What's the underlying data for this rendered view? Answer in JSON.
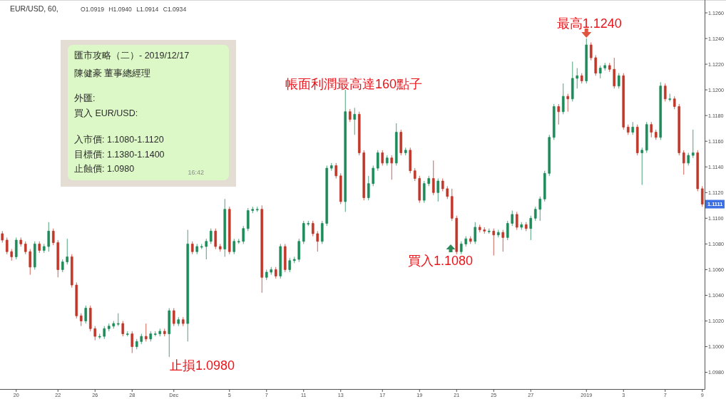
{
  "chart_data": {
    "type": "candlestick",
    "title": "EUR/USD, 60,",
    "subtitle": "O1.0919 H1.0940 L1.0914 C1.0934",
    "categories": [
      null,
      null,
      null,
      "20",
      null,
      null,
      null,
      null,
      null,
      null,
      null,
      null,
      "22",
      null,
      null,
      null,
      null,
      null,
      null,
      null,
      "26",
      null,
      null,
      null,
      null,
      null,
      null,
      null,
      "28",
      null,
      null,
      null,
      null,
      null,
      null,
      null,
      null,
      "Dec",
      null,
      null,
      null,
      null,
      null,
      null,
      null,
      null,
      null,
      null,
      null,
      "5",
      null,
      null,
      null,
      null,
      null,
      null,
      null,
      "7",
      null,
      null,
      null,
      null,
      null,
      null,
      null,
      "11",
      null,
      null,
      null,
      null,
      null,
      null,
      null,
      "13",
      null,
      null,
      null,
      null,
      null,
      null,
      null,
      null,
      "17",
      null,
      null,
      null,
      null,
      null,
      null,
      null,
      "19",
      null,
      null,
      null,
      null,
      null,
      null,
      null,
      "21",
      null,
      null,
      null,
      null,
      null,
      null,
      null,
      "25",
      null,
      null,
      null,
      null,
      null,
      null,
      null,
      "27",
      null,
      null,
      null,
      null,
      null,
      null,
      null,
      null,
      null,
      null,
      null,
      "2019",
      null,
      null,
      null,
      null,
      null,
      null,
      null,
      "3",
      null,
      null,
      null,
      null,
      null,
      null,
      null,
      null,
      "7",
      null,
      null,
      null,
      null,
      null,
      null,
      null,
      "9"
    ],
    "ohlc": [
      [
        1.1088,
        1.109,
        1.1081,
        1.1083
      ],
      [
        1.1083,
        1.1085,
        1.1072,
        1.1074
      ],
      [
        1.1074,
        1.1076,
        1.1067,
        1.107
      ],
      [
        1.107,
        1.1085,
        1.1068,
        1.1083
      ],
      [
        1.1083,
        1.1085,
        1.1078,
        1.108
      ],
      [
        1.108,
        1.1082,
        1.1072,
        1.1074
      ],
      [
        1.1074,
        1.1076,
        1.1056,
        1.1062
      ],
      [
        1.1062,
        1.1082,
        1.106,
        1.108
      ],
      [
        1.108,
        1.1082,
        1.1073,
        1.1075
      ],
      [
        1.1075,
        1.108,
        1.1073,
        1.1078
      ],
      [
        1.1078,
        1.1097,
        1.1074,
        1.109
      ],
      [
        1.109,
        1.1092,
        1.1079,
        1.1081
      ],
      [
        1.1081,
        1.1083,
        1.1054,
        1.106
      ],
      [
        1.106,
        1.1068,
        1.1058,
        1.1066
      ],
      [
        1.1066,
        1.1084,
        1.1064,
        1.107
      ],
      [
        1.107,
        1.1072,
        1.1046,
        1.1048
      ],
      [
        1.1048,
        1.105,
        1.1022,
        1.1024
      ],
      [
        1.1024,
        1.1026,
        1.1016,
        1.102
      ],
      [
        1.102,
        1.1032,
        1.1018,
        1.103
      ],
      [
        1.103,
        1.1032,
        1.1012,
        1.1014
      ],
      [
        1.1014,
        1.1016,
        1.1005,
        1.1008
      ],
      [
        1.1008,
        1.101,
        1.1006,
        1.1008
      ],
      [
        1.1008,
        1.1016,
        1.1006,
        1.1014
      ],
      [
        1.1014,
        1.1018,
        1.1012,
        1.1016
      ],
      [
        1.1016,
        1.102,
        1.1014,
        1.1018
      ],
      [
        1.1018,
        1.1026,
        1.1016,
        1.1018
      ],
      [
        1.1018,
        1.102,
        1.1008,
        1.101
      ],
      [
        1.101,
        1.1012,
        1.1008,
        1.101
      ],
      [
        1.101,
        1.1012,
        1.0995,
        1.1
      ],
      [
        1.1,
        1.1006,
        1.0998,
        1.1004
      ],
      [
        1.1004,
        1.101,
        1.1002,
        1.1008
      ],
      [
        1.1008,
        1.1018,
        1.1004,
        1.1006
      ],
      [
        1.1006,
        1.1012,
        1.1004,
        1.101
      ],
      [
        1.101,
        1.1012,
        1.1008,
        1.101
      ],
      [
        1.101,
        1.1014,
        1.1008,
        1.1012
      ],
      [
        1.1012,
        1.1014,
        1.1008,
        1.101
      ],
      [
        1.101,
        1.103,
        1.0992,
        1.1028
      ],
      [
        1.1028,
        1.103,
        1.1016,
        1.1018
      ],
      [
        1.1018,
        1.1023,
        1.1016,
        1.1021
      ],
      [
        1.1021,
        1.1023,
        1.1016,
        1.1018
      ],
      [
        1.1018,
        1.1091,
        1.1004,
        1.108
      ],
      [
        1.108,
        1.1082,
        1.1072,
        1.1074
      ],
      [
        1.1074,
        1.108,
        1.1072,
        1.1078
      ],
      [
        1.1078,
        1.108,
        1.1076,
        1.1078
      ],
      [
        1.1078,
        1.1084,
        1.1068,
        1.1082
      ],
      [
        1.1082,
        1.1092,
        1.108,
        1.109
      ],
      [
        1.109,
        1.1092,
        1.1076,
        1.1078
      ],
      [
        1.1078,
        1.108,
        1.1074,
        1.1076
      ],
      [
        1.1076,
        1.1115,
        1.107,
        1.1107
      ],
      [
        1.1107,
        1.1109,
        1.1072,
        1.1074
      ],
      [
        1.1074,
        1.1084,
        1.1072,
        1.1082
      ],
      [
        1.1082,
        1.1084,
        1.108,
        1.1082
      ],
      [
        1.1082,
        1.1094,
        1.108,
        1.1092
      ],
      [
        1.1092,
        1.1108,
        1.109,
        1.1106
      ],
      [
        1.1106,
        1.1109,
        1.1104,
        1.1107
      ],
      [
        1.1107,
        1.1109,
        1.1105,
        1.1107
      ],
      [
        1.1107,
        1.111,
        1.1042,
        1.1054
      ],
      [
        1.1054,
        1.106,
        1.1052,
        1.1058
      ],
      [
        1.1058,
        1.1062,
        1.1056,
        1.106
      ],
      [
        1.106,
        1.1062,
        1.1053,
        1.1055
      ],
      [
        1.1055,
        1.108,
        1.1053,
        1.1078
      ],
      [
        1.1078,
        1.108,
        1.1058,
        1.106
      ],
      [
        1.106,
        1.1069,
        1.1058,
        1.1067
      ],
      [
        1.1067,
        1.107,
        1.1065,
        1.1068
      ],
      [
        1.1068,
        1.1084,
        1.1066,
        1.1082
      ],
      [
        1.1082,
        1.1098,
        1.108,
        1.1096
      ],
      [
        1.1096,
        1.1098,
        1.1094,
        1.1096
      ],
      [
        1.1096,
        1.1098,
        1.1086,
        1.1088
      ],
      [
        1.1088,
        1.109,
        1.1074,
        1.1082
      ],
      [
        1.1082,
        1.1098,
        1.108,
        1.1096
      ],
      [
        1.1096,
        1.1141,
        1.1094,
        1.1139
      ],
      [
        1.1139,
        1.1143,
        1.1137,
        1.1141
      ],
      [
        1.1141,
        1.1143,
        1.1131,
        1.1133
      ],
      [
        1.1133,
        1.1135,
        1.1111,
        1.1113
      ],
      [
        1.1113,
        1.12,
        1.1105,
        1.1183
      ],
      [
        1.1183,
        1.1185,
        1.1175,
        1.1177
      ],
      [
        1.1177,
        1.1186,
        1.1165,
        1.1181
      ],
      [
        1.1181,
        1.1183,
        1.1149,
        1.1151
      ],
      [
        1.1151,
        1.1153,
        1.1114,
        1.1116
      ],
      [
        1.1116,
        1.1133,
        1.1114,
        1.1127
      ],
      [
        1.1127,
        1.1141,
        1.1125,
        1.1139
      ],
      [
        1.1139,
        1.1153,
        1.1137,
        1.1151
      ],
      [
        1.1151,
        1.1153,
        1.1141,
        1.1143
      ],
      [
        1.1143,
        1.1149,
        1.1141,
        1.1147
      ],
      [
        1.1147,
        1.1149,
        1.113,
        1.1143
      ],
      [
        1.1143,
        1.1174,
        1.1141,
        1.1167
      ],
      [
        1.1167,
        1.1169,
        1.1149,
        1.1151
      ],
      [
        1.1151,
        1.1155,
        1.1149,
        1.1153
      ],
      [
        1.1153,
        1.1155,
        1.1135,
        1.1137
      ],
      [
        1.1137,
        1.1139,
        1.1129,
        1.1131
      ],
      [
        1.1131,
        1.1133,
        1.1112,
        1.1114
      ],
      [
        1.1114,
        1.1129,
        1.1112,
        1.1127
      ],
      [
        1.1127,
        1.1133,
        1.1125,
        1.1131
      ],
      [
        1.1131,
        1.1145,
        1.1118,
        1.112
      ],
      [
        1.112,
        1.1131,
        1.1113,
        1.1129
      ],
      [
        1.1129,
        1.1131,
        1.1121,
        1.1123
      ],
      [
        1.1123,
        1.1125,
        1.1115,
        1.1117
      ],
      [
        1.1117,
        1.1123,
        1.1098,
        1.11
      ],
      [
        1.11,
        1.1102,
        1.1072,
        1.1074
      ],
      [
        1.1074,
        1.1082,
        1.1072,
        1.108
      ],
      [
        1.108,
        1.1086,
        1.1078,
        1.1084
      ],
      [
        1.1084,
        1.1086,
        1.108,
        1.1082
      ],
      [
        1.1082,
        1.1097,
        1.108,
        1.1093
      ],
      [
        1.1093,
        1.1095,
        1.1089,
        1.1091
      ],
      [
        1.1091,
        1.1093,
        1.1088,
        1.109
      ],
      [
        1.109,
        1.1092,
        1.1088,
        1.109
      ],
      [
        1.109,
        1.1092,
        1.1071,
        1.1087
      ],
      [
        1.1087,
        1.1091,
        1.1085,
        1.1089
      ],
      [
        1.1089,
        1.1091,
        1.1074,
        1.1085
      ],
      [
        1.1085,
        1.1098,
        1.1083,
        1.1096
      ],
      [
        1.1096,
        1.1106,
        1.1094,
        1.1103
      ],
      [
        1.1103,
        1.1105,
        1.1091,
        1.1093
      ],
      [
        1.1093,
        1.1097,
        1.1091,
        1.1095
      ],
      [
        1.1095,
        1.1097,
        1.109,
        1.1092
      ],
      [
        1.1092,
        1.1102,
        1.1083,
        1.11
      ],
      [
        1.11,
        1.1109,
        1.1098,
        1.1107
      ],
      [
        1.1107,
        1.1117,
        1.1098,
        1.1115
      ],
      [
        1.1115,
        1.1137,
        1.1113,
        1.1135
      ],
      [
        1.1135,
        1.1165,
        1.1133,
        1.1163
      ],
      [
        1.1163,
        1.1189,
        1.1161,
        1.1187
      ],
      [
        1.1187,
        1.1189,
        1.1173,
        1.1183
      ],
      [
        1.1183,
        1.1205,
        1.1181,
        1.1195
      ],
      [
        1.1195,
        1.1197,
        1.1183,
        1.1193
      ],
      [
        1.1193,
        1.1222,
        1.1191,
        1.1209
      ],
      [
        1.1209,
        1.1217,
        1.1201,
        1.1211
      ],
      [
        1.1211,
        1.1213,
        1.1205,
        1.1207
      ],
      [
        1.1207,
        1.124,
        1.1205,
        1.1235
      ],
      [
        1.1235,
        1.1237,
        1.1223,
        1.1225
      ],
      [
        1.1225,
        1.1227,
        1.1211,
        1.1213
      ],
      [
        1.1213,
        1.1219,
        1.1209,
        1.1217
      ],
      [
        1.1217,
        1.1221,
        1.1215,
        1.1219
      ],
      [
        1.1219,
        1.1221,
        1.1214,
        1.1216
      ],
      [
        1.1216,
        1.1225,
        1.1201,
        1.1203
      ],
      [
        1.1203,
        1.1213,
        1.1201,
        1.1211
      ],
      [
        1.1211,
        1.1213,
        1.1169,
        1.1171
      ],
      [
        1.1171,
        1.1173,
        1.1165,
        1.1167
      ],
      [
        1.1167,
        1.1175,
        1.1165,
        1.1171
      ],
      [
        1.1171,
        1.1173,
        1.1149,
        1.1151
      ],
      [
        1.1151,
        1.1155,
        1.1126,
        1.1153
      ],
      [
        1.1153,
        1.1175,
        1.1151,
        1.1173
      ],
      [
        1.1173,
        1.1175,
        1.1163,
        1.1167
      ],
      [
        1.1167,
        1.1169,
        1.1161,
        1.1163
      ],
      [
        1.1163,
        1.1206,
        1.1161,
        1.1203
      ],
      [
        1.1203,
        1.1205,
        1.1191,
        1.1193
      ],
      [
        1.1193,
        1.1197,
        1.1191,
        1.1193
      ],
      [
        1.1193,
        1.1195,
        1.1185,
        1.1187
      ],
      [
        1.1187,
        1.1189,
        1.1149,
        1.1151
      ],
      [
        1.1151,
        1.1153,
        1.1134,
        1.1143
      ],
      [
        1.1143,
        1.1151,
        1.1141,
        1.1149
      ],
      [
        1.1149,
        1.1169,
        1.1147,
        1.1151
      ],
      [
        1.1151,
        1.1153,
        1.1121,
        1.1123
      ],
      [
        1.1123,
        1.1125,
        1.1109,
        1.1111
      ]
    ],
    "ylim": [
      1.0967,
      1.127
    ],
    "yticks": [
      {
        "value": 1.098,
        "label": "1.0980"
      },
      {
        "value": 1.1,
        "label": "1.1000"
      },
      {
        "value": 1.102,
        "label": "1.1020"
      },
      {
        "value": 1.104,
        "label": "1.1040"
      },
      {
        "value": 1.106,
        "label": "1.1060"
      },
      {
        "value": 1.108,
        "label": "1.1080"
      },
      {
        "value": 1.11,
        "label": "1.1100"
      },
      {
        "value": 1.112,
        "label": "1.1120"
      },
      {
        "value": 1.114,
        "label": "1.1140"
      },
      {
        "value": 1.116,
        "label": "1.1160"
      },
      {
        "value": 1.118,
        "label": "1.1180"
      },
      {
        "value": 1.12,
        "label": "1.1200"
      },
      {
        "value": 1.122,
        "label": "1.1220"
      },
      {
        "value": 1.124,
        "label": "1.1240"
      },
      {
        "value": 1.126,
        "label": "1.1260"
      }
    ],
    "annotations": [
      "匯市攻略（二）- 2019/12/17",
      "陳健豪 董事總經理",
      "外匯:",
      "買入 EUR/USD:",
      "入市價: 1.1080-1.1120",
      "目標價: 1.1380-1.1400",
      "止蝕價: 1.0980",
      "16:42",
      {
        "text": "最高1.1240",
        "x": "2019",
        "y": 1.124
      },
      "帳面利潤最高達160點子",
      "買入1.1080",
      "止損1.0980",
      {
        "text": "1.1111",
        "y": 1.1111
      }
    ]
  }
}
